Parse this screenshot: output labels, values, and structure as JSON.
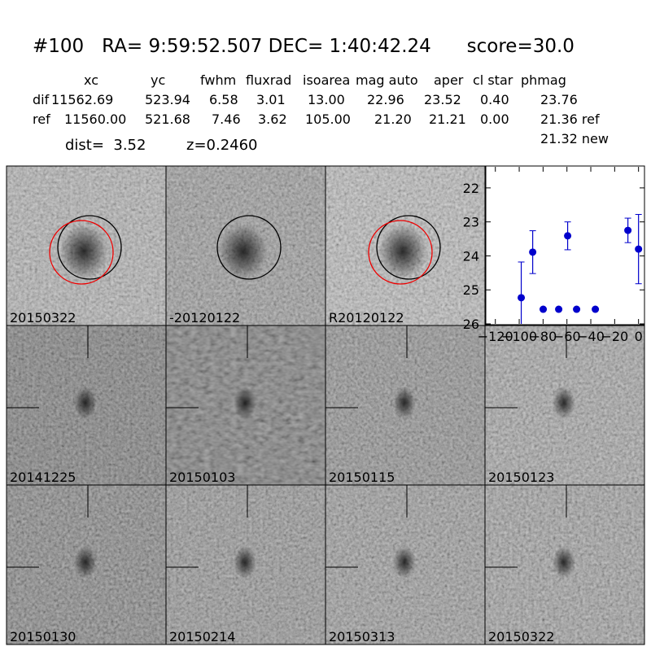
{
  "header": {
    "title": "#100   RA= 9:59:52.507 DEC= 1:40:42.24      score=30.0",
    "table": {
      "columns": [
        "xc",
        "yc",
        "fwhm",
        "fluxrad",
        "isoarea",
        "mag auto",
        "aper",
        "cl star",
        "phmag"
      ],
      "rows": [
        [
          "dif",
          "11562.69",
          "523.94",
          "6.58",
          "3.01",
          "13.00",
          "22.96",
          "23.52",
          "0.40",
          "23.76"
        ],
        [
          "ref",
          "11560.00",
          "521.68",
          "7.46",
          "3.62",
          "105.00",
          "21.20",
          "21.21",
          "0.00",
          "21.36 ref"
        ]
      ],
      "extra": "21.32 new"
    },
    "dist": "dist=  3.52",
    "z": "z=0.2460"
  },
  "panels": [
    {
      "label": "20150322"
    },
    {
      "label": "-20120122"
    },
    {
      "label": "R20120122"
    },
    {
      "label": "20141225"
    },
    {
      "label": "20150103"
    },
    {
      "label": "20150115"
    },
    {
      "label": "20150123"
    },
    {
      "label": "20150130"
    },
    {
      "label": "20150214"
    },
    {
      "label": "20150313"
    },
    {
      "label": "20150322",
      "color": "#ff0000"
    }
  ],
  "chart_data": {
    "type": "errorbar",
    "color": "#0000cc",
    "x": [
      -98.3,
      -88.7,
      -79.9,
      -66.9,
      -59.4,
      -51.9,
      -36.2,
      -8.9,
      0
    ],
    "values": [
      25.23,
      23.89,
      25.57,
      25.57,
      23.41,
      25.57,
      25.57,
      23.25,
      23.8
    ],
    "errors": [
      1.05,
      0.63,
      null,
      null,
      0.41,
      null,
      null,
      0.36,
      1.02
    ],
    "xlim": [
      -128,
      5
    ],
    "ylim": [
      26,
      21.38
    ],
    "xticks": [
      {
        "value": -120,
        "label": "−120"
      },
      {
        "value": -100,
        "label": "−100"
      },
      {
        "value": -80,
        "label": "−80"
      },
      {
        "value": -60,
        "label": "−60"
      },
      {
        "value": -40,
        "label": "−40"
      },
      {
        "value": -20,
        "label": "−20"
      },
      0
    ],
    "yticks": [
      22,
      23,
      24,
      25,
      26
    ]
  }
}
